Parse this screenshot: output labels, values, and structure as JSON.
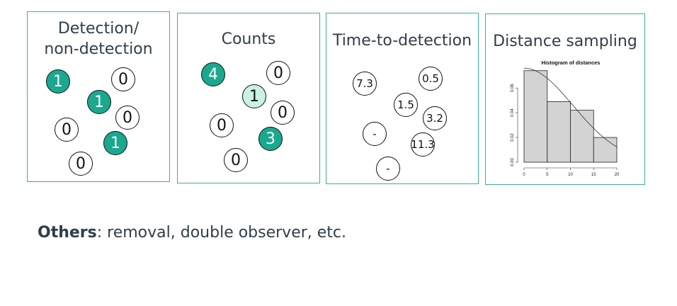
{
  "panels": {
    "detection": {
      "title_line1": "Detection/",
      "title_line2": "non-detection",
      "circles": [
        {
          "v": "1",
          "style": "teal"
        },
        {
          "v": "0",
          "style": "plain"
        },
        {
          "v": "1",
          "style": "teal"
        },
        {
          "v": "0",
          "style": "plain"
        },
        {
          "v": "0",
          "style": "plain"
        },
        {
          "v": "1",
          "style": "teal"
        },
        {
          "v": "0",
          "style": "plain"
        }
      ]
    },
    "counts": {
      "title": "Counts",
      "circles": [
        {
          "v": "4",
          "style": "teal"
        },
        {
          "v": "0",
          "style": "plain"
        },
        {
          "v": "1",
          "style": "light"
        },
        {
          "v": "0",
          "style": "plain"
        },
        {
          "v": "0",
          "style": "plain"
        },
        {
          "v": "3",
          "style": "teal"
        },
        {
          "v": "0",
          "style": "plain"
        }
      ]
    },
    "time": {
      "title": "Time-to-detection",
      "circles": [
        {
          "v": "7.3"
        },
        {
          "v": "0.5"
        },
        {
          "v": "1.5"
        },
        {
          "v": "3.2"
        },
        {
          "v": "-"
        },
        {
          "v": "11.3"
        },
        {
          "v": "-"
        }
      ]
    },
    "distance": {
      "title": "Distance sampling"
    }
  },
  "chart_data": {
    "type": "bar",
    "title": "Histogram of distances",
    "bins": [
      [
        0,
        5
      ],
      [
        5,
        10
      ],
      [
        10,
        15
      ],
      [
        15,
        20
      ]
    ],
    "values": [
      0.074,
      0.049,
      0.042,
      0.02
    ],
    "xlim": [
      0,
      20
    ],
    "ylim": [
      0,
      0.075
    ],
    "xticks": [
      "0",
      "5",
      "10",
      "15",
      "20"
    ],
    "yticks": [
      "0.00",
      "0.02",
      "0.04",
      "0.06"
    ],
    "curve": "half-normal detection function overlay",
    "bar_color": "#d3d3d3"
  },
  "footer": {
    "bold": "Others",
    "rest": ": removal, double observer, etc."
  }
}
